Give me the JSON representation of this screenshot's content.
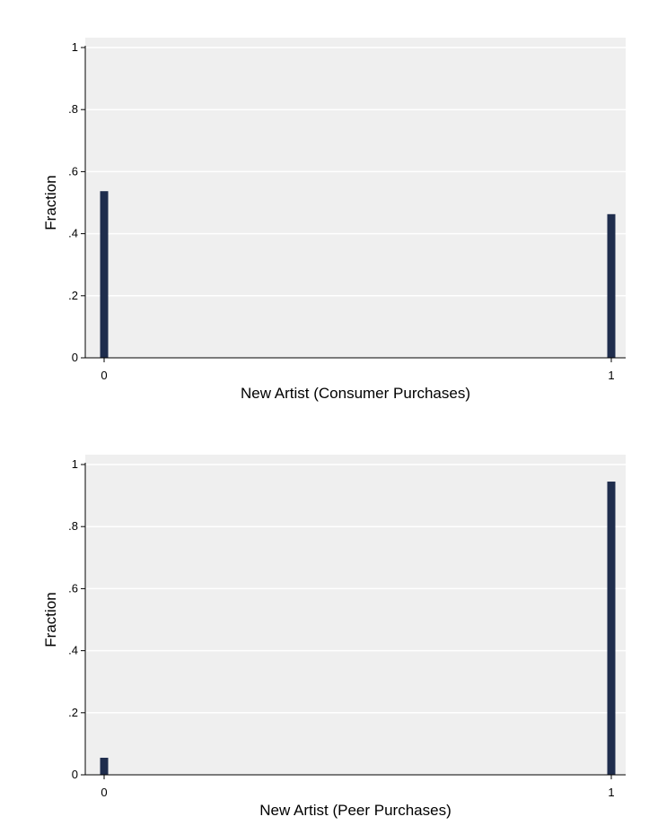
{
  "chart_data": [
    {
      "type": "bar",
      "categories": [
        "0",
        "1"
      ],
      "x": [
        0,
        1
      ],
      "values": [
        0.537,
        0.463
      ],
      "xlabel": "New Artist (Consumer Purchases)",
      "ylabel": "Fraction",
      "xlim": [
        0,
        1
      ],
      "ylim": [
        0,
        1
      ],
      "yticks": [
        "0",
        ".2",
        ".4",
        ".6",
        ".8",
        "1"
      ],
      "ytick_values": [
        0,
        0.2,
        0.4,
        0.6,
        0.8,
        1
      ],
      "xticks": [
        "0",
        "1"
      ],
      "grid": true,
      "bar_color": "#1f2d4d",
      "plot_background": "#efefef"
    },
    {
      "type": "bar",
      "categories": [
        "0",
        "1"
      ],
      "x": [
        0,
        1
      ],
      "values": [
        0.055,
        0.945
      ],
      "xlabel": "New Artist (Peer Purchases)",
      "ylabel": "Fraction",
      "xlim": [
        0,
        1
      ],
      "ylim": [
        0,
        1
      ],
      "yticks": [
        "0",
        ".2",
        ".4",
        ".6",
        ".8",
        "1"
      ],
      "ytick_values": [
        0,
        0.2,
        0.4,
        0.6,
        0.8,
        1
      ],
      "xticks": [
        "0",
        "1"
      ],
      "grid": true,
      "bar_color": "#1f2d4d",
      "plot_background": "#efefef"
    }
  ]
}
